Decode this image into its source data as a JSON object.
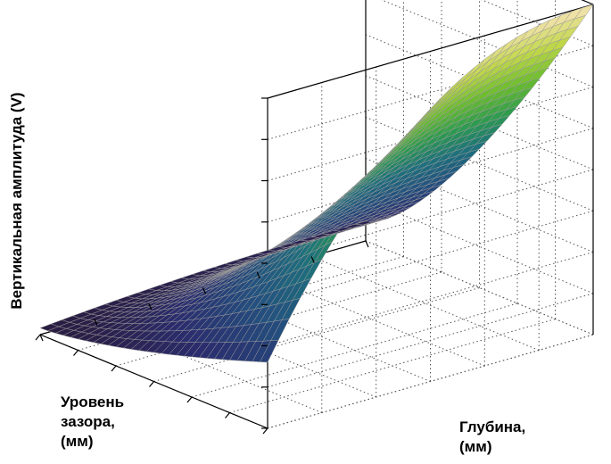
{
  "chart_data": {
    "type": "surface",
    "title": "",
    "zlabel": "Вертикальная амплитуда (V)",
    "xlabel_lines": [
      "Уровень",
      "зазора,",
      "(мм)"
    ],
    "ylabel_lines": [
      "Глубина,",
      "(мм)"
    ],
    "tick_labels_shown": false,
    "grid": true,
    "colormap": "parula-like (dark navy → blue → teal → green → yellow-green → pale yellow)",
    "colormap_stops": [
      "#2a1a3a",
      "#2b2d6e",
      "#24507f",
      "#1d6f7d",
      "#2c9a4f",
      "#6cbd2e",
      "#c2d74a",
      "#f6e3b4"
    ],
    "grid_resolution": [
      30,
      30
    ],
    "corner_values_relative": {
      "gap_min_depth_min": 0.02,
      "gap_max_depth_min": 0.2,
      "gap_min_depth_max": 0.06,
      "gap_max_depth_max": 1.0
    }
  }
}
